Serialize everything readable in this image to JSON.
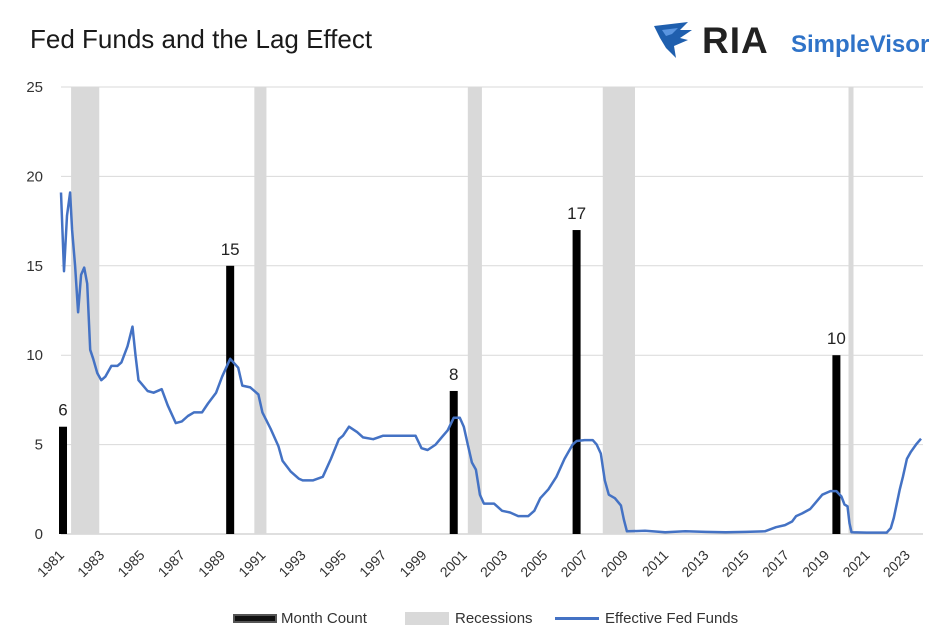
{
  "header": {
    "title": "Fed Funds and the Lag Effect"
  },
  "logo": {
    "brand": "RIA",
    "product": "SimpleVisor",
    "brand_color": "#2f73c8",
    "icon": "eagle-icon"
  },
  "colors": {
    "line": "#4472c4",
    "bar": "#000000",
    "recession": "#d9d9d9",
    "grid": "#d9d9d9"
  },
  "chart_data": {
    "type": "line",
    "title": "Fed Funds and the Lag Effect",
    "xlabel": "",
    "ylabel": "",
    "ylim": [
      0,
      25
    ],
    "xlim": [
      1981.0,
      2023.8
    ],
    "y_ticks": [
      "0",
      "5",
      "10",
      "15",
      "20",
      "25"
    ],
    "x_ticks": [
      "1981",
      "1983",
      "1985",
      "1987",
      "1989",
      "1991",
      "1993",
      "1995",
      "1997",
      "1999",
      "2001",
      "2003",
      "2005",
      "2007",
      "2009",
      "2011",
      "2013",
      "2015",
      "2017",
      "2019",
      "2021",
      "2023"
    ],
    "grid": true,
    "legend_position": "bottom",
    "legend": [
      "Month Count",
      "Recessions",
      "Effective Fed Funds"
    ],
    "recessions": [
      {
        "start": 1981.5,
        "end": 1982.9
      },
      {
        "start": 1990.6,
        "end": 1991.2
      },
      {
        "start": 2001.2,
        "end": 2001.9
      },
      {
        "start": 2007.9,
        "end": 2009.5
      },
      {
        "start": 2020.1,
        "end": 2020.35
      }
    ],
    "month_count": [
      {
        "x": 1981.1,
        "value": 6
      },
      {
        "x": 1989.4,
        "value": 15
      },
      {
        "x": 2000.5,
        "value": 8
      },
      {
        "x": 2006.6,
        "value": 17
      },
      {
        "x": 2019.5,
        "value": 10
      }
    ],
    "series": [
      {
        "name": "Effective Fed Funds",
        "x": [
          1981.0,
          1981.15,
          1981.3,
          1981.45,
          1981.55,
          1981.7,
          1981.85,
          1982.0,
          1982.15,
          1982.3,
          1982.45,
          1982.6,
          1982.8,
          1983.0,
          1983.2,
          1983.5,
          1983.8,
          1984.0,
          1984.3,
          1984.55,
          1984.7,
          1984.85,
          1985.0,
          1985.3,
          1985.6,
          1986.0,
          1986.3,
          1986.7,
          1987.0,
          1987.3,
          1987.6,
          1988.0,
          1988.3,
          1988.7,
          1989.0,
          1989.4,
          1989.8,
          1990.0,
          1990.4,
          1990.8,
          1991.0,
          1991.4,
          1991.8,
          1992.0,
          1992.4,
          1992.8,
          1993.0,
          1993.5,
          1994.0,
          1994.4,
          1994.8,
          1995.0,
          1995.3,
          1995.7,
          1996.0,
          1996.5,
          1997.0,
          1997.5,
          1998.0,
          1998.6,
          1998.9,
          1999.2,
          1999.6,
          1999.9,
          2000.2,
          2000.5,
          2000.8,
          2001.0,
          2001.2,
          2001.4,
          2001.6,
          2001.8,
          2002.0,
          2002.5,
          2002.9,
          2003.3,
          2003.7,
          2004.2,
          2004.5,
          2004.8,
          2005.2,
          2005.6,
          2006.0,
          2006.4,
          2006.6,
          2007.0,
          2007.4,
          2007.6,
          2007.8,
          2008.0,
          2008.2,
          2008.5,
          2008.8,
          2008.95,
          2009.1,
          2010.0,
          2011.0,
          2012.0,
          2013.0,
          2014.0,
          2015.0,
          2015.95,
          2016.5,
          2016.95,
          2017.3,
          2017.5,
          2017.8,
          2018.2,
          2018.5,
          2018.8,
          2019.2,
          2019.5,
          2019.75,
          2019.9,
          2020.05,
          2020.15,
          2020.25,
          2021.0,
          2022.0,
          2022.2,
          2022.35,
          2022.5,
          2022.65,
          2022.8,
          2023.0,
          2023.2,
          2023.45,
          2023.7
        ],
        "values": [
          19.1,
          14.7,
          17.8,
          19.1,
          17.0,
          15.0,
          12.4,
          14.5,
          14.9,
          14.0,
          10.3,
          9.8,
          9.0,
          8.6,
          8.8,
          9.4,
          9.4,
          9.6,
          10.5,
          11.6,
          10.0,
          8.6,
          8.4,
          8.0,
          7.9,
          8.1,
          7.2,
          6.2,
          6.3,
          6.6,
          6.8,
          6.8,
          7.3,
          7.9,
          8.8,
          9.8,
          9.3,
          8.3,
          8.2,
          7.8,
          6.8,
          5.9,
          4.9,
          4.1,
          3.5,
          3.1,
          3.0,
          3.0,
          3.2,
          4.2,
          5.3,
          5.5,
          6.0,
          5.7,
          5.4,
          5.3,
          5.5,
          5.5,
          5.5,
          5.5,
          4.8,
          4.7,
          5.0,
          5.4,
          5.8,
          6.5,
          6.5,
          6.0,
          5.0,
          4.0,
          3.6,
          2.2,
          1.7,
          1.7,
          1.3,
          1.2,
          1.0,
          1.0,
          1.3,
          2.0,
          2.5,
          3.2,
          4.2,
          5.0,
          5.2,
          5.25,
          5.25,
          5.0,
          4.5,
          3.0,
          2.2,
          2.0,
          1.6,
          0.8,
          0.15,
          0.18,
          0.1,
          0.15,
          0.12,
          0.1,
          0.12,
          0.15,
          0.38,
          0.5,
          0.7,
          1.0,
          1.15,
          1.4,
          1.8,
          2.2,
          2.4,
          2.4,
          2.1,
          1.65,
          1.55,
          0.6,
          0.1,
          0.08,
          0.08,
          0.33,
          0.9,
          1.7,
          2.5,
          3.2,
          4.2,
          4.6,
          5.0,
          5.33
        ]
      }
    ]
  }
}
